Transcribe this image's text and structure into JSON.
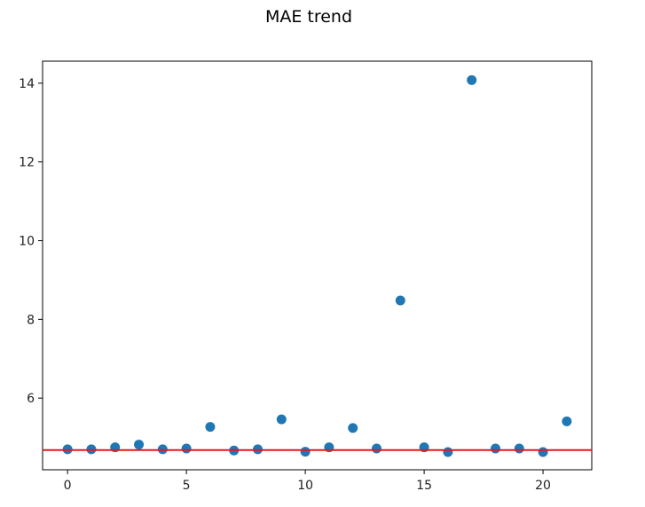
{
  "chart_data": {
    "type": "scatter",
    "title": "MAE trend",
    "xlabel": "",
    "ylabel": "",
    "xlim": [
      -1.05,
      22.05
    ],
    "ylim": [
      4.18,
      14.56
    ],
    "xticks": [
      0,
      5,
      10,
      15,
      20
    ],
    "yticks": [
      6,
      8,
      10,
      12,
      14
    ],
    "grid": false,
    "legend": "none",
    "point_color": "#1f77b4",
    "x": [
      0,
      1,
      2,
      3,
      4,
      5,
      6,
      7,
      8,
      9,
      10,
      11,
      12,
      13,
      14,
      15,
      16,
      17,
      18,
      19,
      20,
      21
    ],
    "y": [
      4.7,
      4.7,
      4.75,
      4.82,
      4.7,
      4.72,
      5.27,
      4.67,
      4.7,
      5.46,
      4.64,
      4.75,
      5.24,
      4.72,
      8.48,
      4.75,
      4.63,
      14.08,
      4.72,
      4.72,
      4.63,
      5.41
    ],
    "reference_line": {
      "y": 4.68,
      "color": "#e31a1c"
    }
  }
}
